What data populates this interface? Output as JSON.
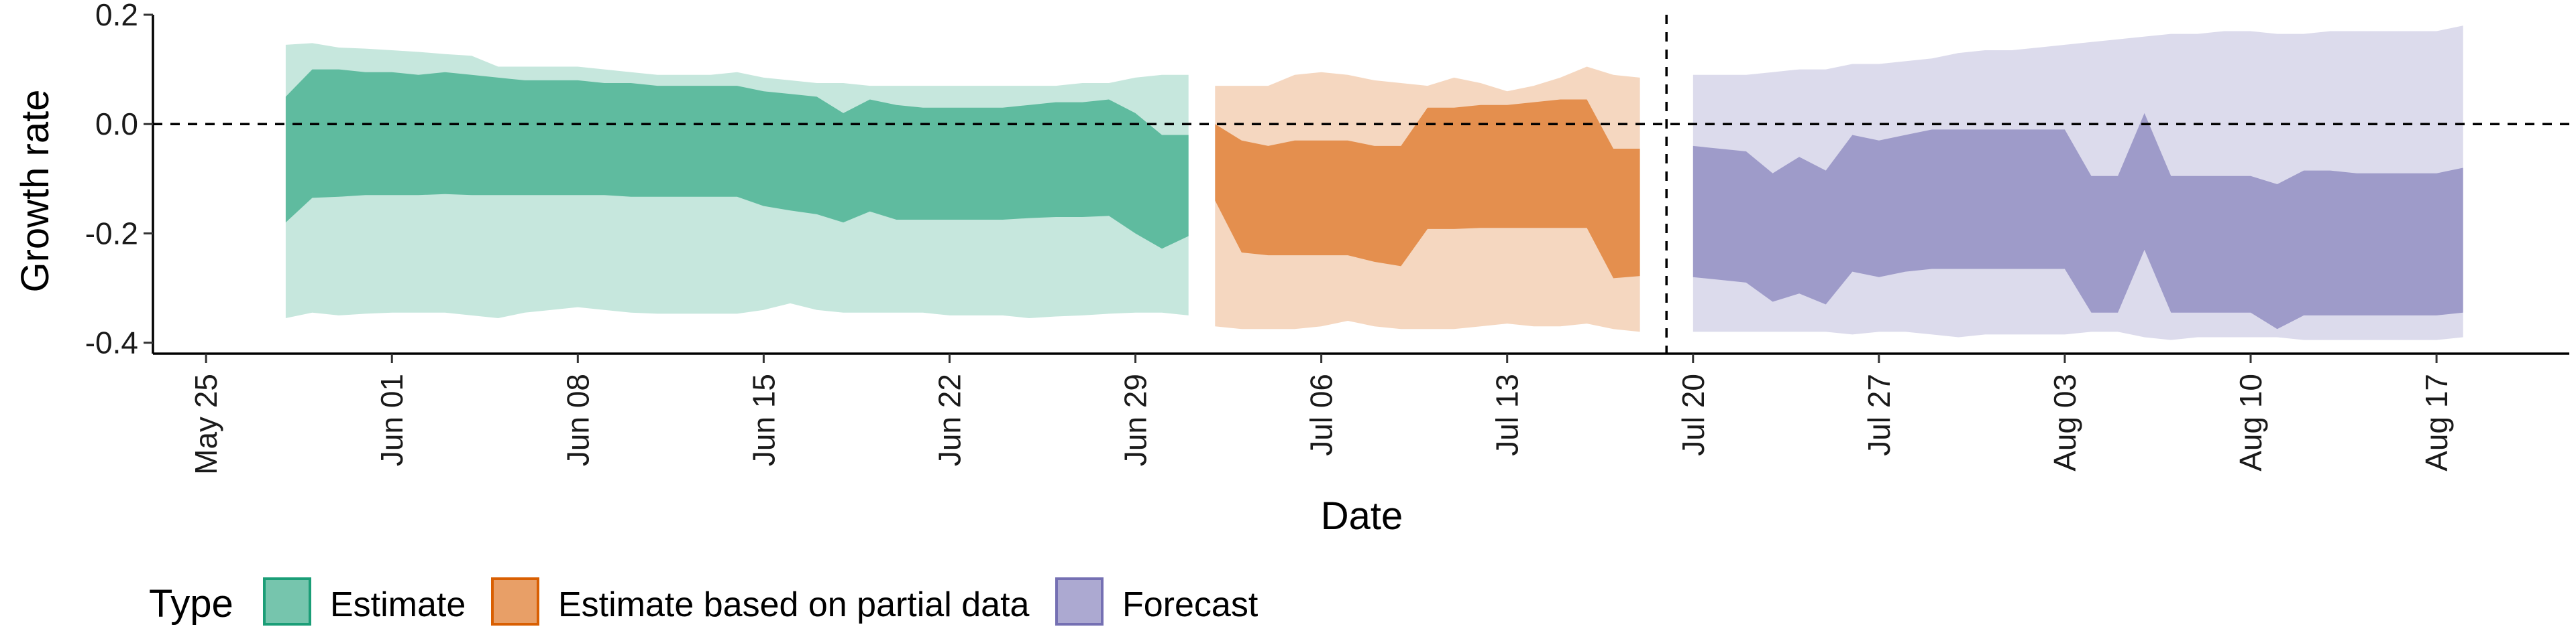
{
  "chart_data": {
    "type": "area",
    "xlabel": "Date",
    "ylabel": "Growth rate",
    "xlim": [
      "2020-05-23",
      "2020-08-22"
    ],
    "ylim": [
      -0.42,
      0.2
    ],
    "x_ticks": [
      {
        "date": "2020-05-25",
        "label": "May 25"
      },
      {
        "date": "2020-06-01",
        "label": "Jun 01"
      },
      {
        "date": "2020-06-08",
        "label": "Jun 08"
      },
      {
        "date": "2020-06-15",
        "label": "Jun 15"
      },
      {
        "date": "2020-06-22",
        "label": "Jun 22"
      },
      {
        "date": "2020-06-29",
        "label": "Jun 29"
      },
      {
        "date": "2020-07-06",
        "label": "Jul 06"
      },
      {
        "date": "2020-07-13",
        "label": "Jul 13"
      },
      {
        "date": "2020-07-20",
        "label": "Jul 20"
      },
      {
        "date": "2020-07-27",
        "label": "Jul 27"
      },
      {
        "date": "2020-08-03",
        "label": "Aug 03"
      },
      {
        "date": "2020-08-10",
        "label": "Aug 10"
      },
      {
        "date": "2020-08-17",
        "label": "Aug 17"
      }
    ],
    "y_ticks": [
      {
        "value": 0.2,
        "label": "0.2"
      },
      {
        "value": 0.0,
        "label": "0.0"
      },
      {
        "value": -0.2,
        "label": "-0.2"
      },
      {
        "value": -0.4,
        "label": "-0.4"
      }
    ],
    "reference_lines": {
      "horizontal_y": 0.0,
      "vertical_date": "2020-07-19",
      "style": "dashed"
    },
    "grid": false,
    "legend": {
      "title": "Type",
      "position": "bottom",
      "items": [
        {
          "label": "Estimate",
          "color": "#1b9e77"
        },
        {
          "label": "Estimate based on partial data",
          "color": "#d95f02"
        },
        {
          "label": "Forecast",
          "color": "#7570b3"
        }
      ]
    },
    "series": [
      {
        "name": "Estimate",
        "color": "#1b9e77",
        "dates": [
          "2020-05-28",
          "2020-05-29",
          "2020-05-30",
          "2020-05-31",
          "2020-06-01",
          "2020-06-02",
          "2020-06-03",
          "2020-06-04",
          "2020-06-05",
          "2020-06-06",
          "2020-06-07",
          "2020-06-08",
          "2020-06-09",
          "2020-06-10",
          "2020-06-11",
          "2020-06-12",
          "2020-06-13",
          "2020-06-14",
          "2020-06-15",
          "2020-06-16",
          "2020-06-17",
          "2020-06-18",
          "2020-06-19",
          "2020-06-20",
          "2020-06-21",
          "2020-06-22",
          "2020-06-23",
          "2020-06-24",
          "2020-06-25",
          "2020-06-26",
          "2020-06-27",
          "2020-06-28",
          "2020-06-29",
          "2020-06-30",
          "2020-07-01"
        ],
        "outer_upper": [
          0.145,
          0.148,
          0.14,
          0.138,
          0.135,
          0.132,
          0.128,
          0.125,
          0.105,
          0.105,
          0.105,
          0.105,
          0.1,
          0.095,
          0.09,
          0.09,
          0.09,
          0.095,
          0.085,
          0.08,
          0.075,
          0.075,
          0.07,
          0.07,
          0.07,
          0.07,
          0.07,
          0.07,
          0.07,
          0.07,
          0.075,
          0.075,
          0.085,
          0.09,
          0.09
        ],
        "inner_upper": [
          0.05,
          0.1,
          0.1,
          0.095,
          0.095,
          0.09,
          0.095,
          0.09,
          0.085,
          0.08,
          0.08,
          0.08,
          0.075,
          0.075,
          0.07,
          0.07,
          0.07,
          0.07,
          0.06,
          0.055,
          0.05,
          0.02,
          0.045,
          0.035,
          0.03,
          0.03,
          0.03,
          0.03,
          0.035,
          0.04,
          0.04,
          0.045,
          0.02,
          -0.02,
          -0.02
        ],
        "inner_lower": [
          -0.18,
          -0.135,
          -0.133,
          -0.13,
          -0.13,
          -0.13,
          -0.128,
          -0.13,
          -0.13,
          -0.13,
          -0.13,
          -0.13,
          -0.13,
          -0.133,
          -0.133,
          -0.133,
          -0.133,
          -0.133,
          -0.15,
          -0.158,
          -0.165,
          -0.18,
          -0.16,
          -0.175,
          -0.175,
          -0.175,
          -0.175,
          -0.175,
          -0.172,
          -0.17,
          -0.17,
          -0.168,
          -0.2,
          -0.228,
          -0.205
        ],
        "outer_lower": [
          -0.355,
          -0.345,
          -0.35,
          -0.347,
          -0.345,
          -0.345,
          -0.345,
          -0.35,
          -0.355,
          -0.345,
          -0.34,
          -0.335,
          -0.34,
          -0.345,
          -0.347,
          -0.347,
          -0.347,
          -0.347,
          -0.34,
          -0.328,
          -0.34,
          -0.345,
          -0.345,
          -0.345,
          -0.345,
          -0.35,
          -0.35,
          -0.35,
          -0.355,
          -0.352,
          -0.35,
          -0.347,
          -0.345,
          -0.345,
          -0.35
        ]
      },
      {
        "name": "Estimate based on partial data",
        "color": "#d95f02",
        "dates": [
          "2020-07-02",
          "2020-07-03",
          "2020-07-04",
          "2020-07-05",
          "2020-07-06",
          "2020-07-07",
          "2020-07-08",
          "2020-07-09",
          "2020-07-10",
          "2020-07-11",
          "2020-07-12",
          "2020-07-13",
          "2020-07-14",
          "2020-07-15",
          "2020-07-16",
          "2020-07-17",
          "2020-07-18"
        ],
        "outer_upper": [
          0.07,
          0.07,
          0.07,
          0.09,
          0.095,
          0.09,
          0.08,
          0.075,
          0.07,
          0.085,
          0.075,
          0.06,
          0.07,
          0.085,
          0.105,
          0.09,
          0.085
        ],
        "inner_upper": [
          -0.0,
          -0.03,
          -0.04,
          -0.03,
          -0.03,
          -0.03,
          -0.04,
          -0.04,
          0.03,
          0.03,
          0.035,
          0.035,
          0.04,
          0.045,
          0.045,
          -0.045,
          -0.045
        ],
        "inner_lower": [
          -0.14,
          -0.235,
          -0.24,
          -0.24,
          -0.24,
          -0.24,
          -0.252,
          -0.26,
          -0.192,
          -0.192,
          -0.19,
          -0.19,
          -0.19,
          -0.19,
          -0.19,
          -0.282,
          -0.278
        ],
        "outer_lower": [
          -0.37,
          -0.375,
          -0.375,
          -0.375,
          -0.37,
          -0.36,
          -0.37,
          -0.375,
          -0.375,
          -0.375,
          -0.37,
          -0.365,
          -0.37,
          -0.37,
          -0.365,
          -0.375,
          -0.38
        ]
      },
      {
        "name": "Forecast",
        "color": "#7570b3",
        "dates": [
          "2020-07-20",
          "2020-07-21",
          "2020-07-22",
          "2020-07-23",
          "2020-07-24",
          "2020-07-25",
          "2020-07-26",
          "2020-07-27",
          "2020-07-28",
          "2020-07-29",
          "2020-07-30",
          "2020-07-31",
          "2020-08-01",
          "2020-08-02",
          "2020-08-03",
          "2020-08-04",
          "2020-08-05",
          "2020-08-06",
          "2020-08-07",
          "2020-08-08",
          "2020-08-09",
          "2020-08-10",
          "2020-08-11",
          "2020-08-12",
          "2020-08-13",
          "2020-08-14",
          "2020-08-15",
          "2020-08-16",
          "2020-08-17",
          "2020-08-18"
        ],
        "outer_upper": [
          0.09,
          0.09,
          0.09,
          0.095,
          0.1,
          0.1,
          0.11,
          0.11,
          0.115,
          0.12,
          0.13,
          0.135,
          0.135,
          0.14,
          0.145,
          0.15,
          0.155,
          0.16,
          0.165,
          0.165,
          0.17,
          0.17,
          0.165,
          0.165,
          0.17,
          0.17,
          0.17,
          0.17,
          0.17,
          0.18
        ],
        "inner_upper": [
          -0.04,
          -0.045,
          -0.05,
          -0.09,
          -0.06,
          -0.085,
          -0.02,
          -0.03,
          -0.02,
          -0.01,
          -0.01,
          -0.01,
          -0.01,
          -0.01,
          -0.01,
          -0.095,
          -0.095,
          0.02,
          -0.095,
          -0.095,
          -0.095,
          -0.095,
          -0.11,
          -0.085,
          -0.085,
          -0.09,
          -0.09,
          -0.09,
          -0.09,
          -0.08
        ],
        "inner_lower": [
          -0.28,
          -0.285,
          -0.29,
          -0.325,
          -0.31,
          -0.33,
          -0.27,
          -0.28,
          -0.27,
          -0.265,
          -0.265,
          -0.265,
          -0.265,
          -0.265,
          -0.265,
          -0.345,
          -0.345,
          -0.23,
          -0.345,
          -0.345,
          -0.345,
          -0.345,
          -0.375,
          -0.35,
          -0.35,
          -0.35,
          -0.35,
          -0.35,
          -0.35,
          -0.345
        ],
        "outer_lower": [
          -0.38,
          -0.38,
          -0.38,
          -0.38,
          -0.38,
          -0.38,
          -0.385,
          -0.38,
          -0.38,
          -0.385,
          -0.39,
          -0.385,
          -0.385,
          -0.385,
          -0.385,
          -0.38,
          -0.38,
          -0.39,
          -0.395,
          -0.39,
          -0.39,
          -0.39,
          -0.39,
          -0.395,
          -0.395,
          -0.395,
          -0.395,
          -0.395,
          -0.395,
          -0.39
        ]
      }
    ]
  }
}
